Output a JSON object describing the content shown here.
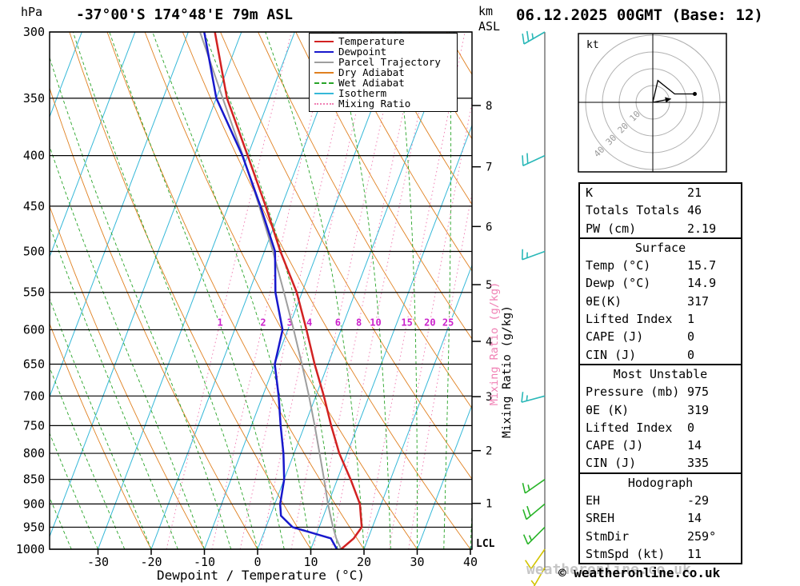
{
  "chart_data": {
    "type": "skewt-logp-sounding",
    "title_left": "-37°00'S 174°48'E 79m ASL",
    "title_right": "06.12.2025 00GMT (Base: 12)",
    "axes": {
      "pressure_hpa": {
        "label": "hPa",
        "scale": "log",
        "min": 300,
        "max": 1000,
        "ticks": [
          300,
          350,
          400,
          450,
          500,
          550,
          600,
          650,
          700,
          750,
          800,
          850,
          900,
          950,
          1000
        ]
      },
      "temperature_c": {
        "label": "Dewpoint / Temperature (°C)",
        "min": -39,
        "max": 40,
        "ticks": [
          -30,
          -20,
          -10,
          0,
          10,
          20,
          30,
          40
        ]
      },
      "km_asl": {
        "unit_km": "km",
        "unit_asl": "ASL",
        "ticks": [
          1,
          2,
          3,
          4,
          5,
          6,
          7,
          8
        ],
        "lcl_label": "LCL"
      },
      "mixing_ratio": {
        "label": "Mixing Ratio (g/kg)",
        "lines_g_kg": [
          1,
          2,
          3,
          4,
          6,
          8,
          10,
          15,
          20,
          25
        ]
      }
    },
    "sounding": {
      "pressure_hpa": [
        1000,
        975,
        950,
        925,
        900,
        850,
        800,
        750,
        700,
        650,
        600,
        550,
        500,
        450,
        400,
        350,
        300
      ],
      "temperature_c": [
        15.7,
        17.3,
        18.0,
        17.0,
        16.0,
        12.5,
        8.5,
        5.0,
        1.5,
        -2.5,
        -6.5,
        -11.0,
        -17.0,
        -23.0,
        -30.0,
        -38.0,
        -45.0
      ],
      "dewpoint_c": [
        14.9,
        13.0,
        5.0,
        2.0,
        1.0,
        0.0,
        -2.0,
        -4.5,
        -7.0,
        -10.0,
        -11.0,
        -15.0,
        -18.0,
        -24.0,
        -31.0,
        -40.0,
        -47.0
      ],
      "parcel_c": [
        15.7,
        14.0,
        12.6,
        11.3,
        10.0,
        7.5,
        4.8,
        1.9,
        -1.3,
        -4.9,
        -8.9,
        -13.4,
        -18.4,
        -24.2,
        -30.9,
        -38.8,
        -47.8
      ]
    },
    "winds": [
      {
        "p_hpa": 300,
        "dir_deg": 240,
        "speed_kt": 25,
        "color": "#2ab8b8"
      },
      {
        "p_hpa": 400,
        "dir_deg": 245,
        "speed_kt": 20,
        "color": "#2ab8b8"
      },
      {
        "p_hpa": 500,
        "dir_deg": 250,
        "speed_kt": 15,
        "color": "#2ab8b8"
      },
      {
        "p_hpa": 700,
        "dir_deg": 255,
        "speed_kt": 15,
        "color": "#2ab8b8"
      },
      {
        "p_hpa": 850,
        "dir_deg": 235,
        "speed_kt": 15,
        "color": "#28b428"
      },
      {
        "p_hpa": 900,
        "dir_deg": 230,
        "speed_kt": 20,
        "color": "#28b428"
      },
      {
        "p_hpa": 950,
        "dir_deg": 225,
        "speed_kt": 15,
        "color": "#28b428"
      },
      {
        "p_hpa": 1000,
        "dir_deg": 215,
        "speed_kt": 10,
        "color": "#d2c400"
      },
      {
        "p_hpa": null,
        "level": "surface",
        "dir_deg": 210,
        "speed_kt": 5,
        "color": "#d2c400"
      }
    ],
    "hodograph": {
      "unit_label": "kt",
      "rings_kt": [
        10,
        20,
        30,
        40
      ],
      "trace_uv_kt": [
        [
          0,
          0
        ],
        [
          3,
          13
        ],
        [
          13,
          5
        ],
        [
          25,
          5
        ]
      ],
      "storm_motion_uv_kt": [
        10.8,
        2.1
      ]
    },
    "colors": {
      "temperature": "#d22222",
      "dewpoint": "#1818cc",
      "parcel": "#9e9e9e",
      "dry_adiabat": "#e08020",
      "wet_adiabat": "#28a428",
      "isotherm": "#35b8d8",
      "mixing_ratio": "#f080b4",
      "mixing_ratio_label": "#cc22cc",
      "isobar": "#000000"
    }
  },
  "legend": {
    "items": [
      {
        "label": "Temperature",
        "color": "#d22222",
        "dash": "solid"
      },
      {
        "label": "Dewpoint",
        "color": "#1818cc",
        "dash": "solid"
      },
      {
        "label": "Parcel Trajectory",
        "color": "#9e9e9e",
        "dash": "solid"
      },
      {
        "label": "Dry Adiabat",
        "color": "#e08020",
        "dash": "solid"
      },
      {
        "label": "Wet Adiabat",
        "color": "#28a428",
        "dash": "dashed"
      },
      {
        "label": "Isotherm",
        "color": "#35b8d8",
        "dash": "solid"
      },
      {
        "label": "Mixing Ratio",
        "color": "#f080b4",
        "dash": "dotted"
      }
    ]
  },
  "panel": {
    "general": {
      "rows": [
        {
          "label": "K",
          "value": "21"
        },
        {
          "label": "Totals Totals",
          "value": "46"
        },
        {
          "label": "PW (cm)",
          "value": "2.19"
        }
      ]
    },
    "surface": {
      "header": "Surface",
      "rows": [
        {
          "label": "Temp (°C)",
          "value": "15.7"
        },
        {
          "label": "Dewp (°C)",
          "value": "14.9"
        },
        {
          "label": "θE(K)",
          "value": "317"
        },
        {
          "label": "Lifted Index",
          "value": "1"
        },
        {
          "label": "CAPE (J)",
          "value": "0"
        },
        {
          "label": "CIN (J)",
          "value": "0"
        }
      ]
    },
    "most_unstable": {
      "header": "Most Unstable",
      "rows": [
        {
          "label": "Pressure (mb)",
          "value": "975"
        },
        {
          "label": "θE (K)",
          "value": "319"
        },
        {
          "label": "Lifted Index",
          "value": "0"
        },
        {
          "label": "CAPE (J)",
          "value": "14"
        },
        {
          "label": "CIN (J)",
          "value": "335"
        }
      ]
    },
    "hodograph_sec": {
      "header": "Hodograph",
      "rows": [
        {
          "label": "EH",
          "value": "-29"
        },
        {
          "label": "SREH",
          "value": "14"
        },
        {
          "label": "StmDir",
          "value": "259°"
        },
        {
          "label": "StmSpd (kt)",
          "value": "11"
        }
      ]
    }
  },
  "footer": {
    "copyright": "© weatheronline.co.uk",
    "watermark": "weatheronline.co.uk"
  }
}
